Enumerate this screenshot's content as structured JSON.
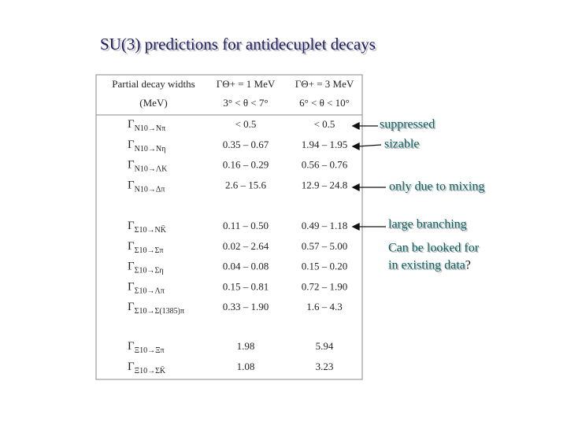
{
  "title": "SU(3) predictions for antidecuplet decays",
  "table": {
    "header": [
      [
        "Partial decay widths",
        "ΓΘ+ = 1 MeV",
        "ΓΘ+ = 3 MeV"
      ],
      [
        "(MeV)",
        "3° < θ < 7°",
        "6° < θ < 10°"
      ]
    ],
    "groups": [
      [
        {
          "symbol": "Γ",
          "sub": "N10→Nπ",
          "a": "< 0.5",
          "b": "< 0.5"
        },
        {
          "symbol": "Γ",
          "sub": "N10→Nη",
          "a": "0.35 – 0.67",
          "b": "1.94 – 1.95"
        },
        {
          "symbol": "Γ",
          "sub": "N10→ΛK",
          "a": "0.16 – 0.29",
          "b": "0.56 – 0.76"
        },
        {
          "symbol": "Γ",
          "sub": "N10→Δπ",
          "a": "2.6 – 15.6",
          "b": "12.9 – 24.8"
        }
      ],
      [
        {
          "symbol": "Γ",
          "sub": "Σ10→NK̄",
          "a": "0.11 – 0.50",
          "b": "0.49 – 1.18"
        },
        {
          "symbol": "Γ",
          "sub": "Σ10→Σπ",
          "a": "0.02 – 2.64",
          "b": "0.57 – 5.00"
        },
        {
          "symbol": "Γ",
          "sub": "Σ10→Ση",
          "a": "0.04 – 0.08",
          "b": "0.15 – 0.20"
        },
        {
          "symbol": "Γ",
          "sub": "Σ10→Λπ",
          "a": "0.15 – 0.81",
          "b": "0.72 – 1.90"
        },
        {
          "symbol": "Γ",
          "sub": "Σ10→Σ(1385)π",
          "a": "0.33 – 1.90",
          "b": "1.6 – 4.3"
        }
      ],
      [
        {
          "symbol": "Γ",
          "sub": "Ξ10→Ξπ",
          "a": "1.98",
          "b": "5.94"
        },
        {
          "symbol": "Γ",
          "sub": "Ξ10→ΣK̄",
          "a": "1.08",
          "b": "3.23"
        }
      ]
    ]
  },
  "annotations": {
    "suppressed": "suppressed",
    "sizable": "sizable",
    "mixing": "only due to mixing",
    "branching": "large branching",
    "data_question": {
      "lines": [
        "Can be looked for",
        "in existing data"
      ],
      "suffix": "?"
    }
  }
}
